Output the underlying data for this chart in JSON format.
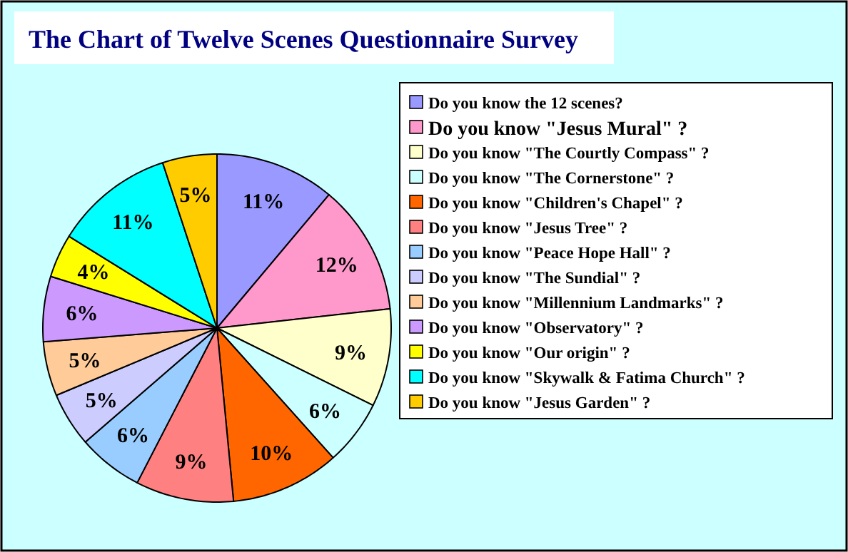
{
  "chart_data": {
    "type": "pie",
    "title": "The Chart of Twelve Scenes Questionnaire Survey",
    "categories": [
      "Do you know the 12 scenes?",
      "Do you know \"Jesus Mural\" ?",
      "Do you know \"The Courtly Compass\" ?",
      "Do you know \"The Cornerstone\" ?",
      "Do you know \"Children's Chapel\" ?",
      "Do you know \"Jesus Tree\" ?",
      "Do you know \"Peace Hope Hall\" ?",
      "Do you know \"The Sundial\" ?",
      "Do you know \"Millennium Landmarks\" ?",
      "Do you know \"Observatory\" ?",
      "Do you know \"Our origin\" ?",
      "Do you know \"Skywalk & Fatima Church\" ?",
      "Do you know \"Jesus Garden\" ?"
    ],
    "values": [
      11,
      12,
      9,
      6,
      10,
      9,
      6,
      5,
      5,
      6,
      4,
      11,
      5
    ],
    "colors": [
      "#9999ff",
      "#ff99cc",
      "#ffffcc",
      "#ccffff",
      "#ff6600",
      "#ff8080",
      "#99ccff",
      "#ccccff",
      "#ffcc99",
      "#cc99ff",
      "#ffff00",
      "#00ffff",
      "#ffcc00"
    ],
    "value_labels": [
      "11%",
      "12%",
      "9%",
      "6%",
      "10%",
      "9%",
      "6%",
      "5%",
      "5%",
      "6%",
      "4%",
      "11%",
      "5%"
    ],
    "legend": "right"
  }
}
